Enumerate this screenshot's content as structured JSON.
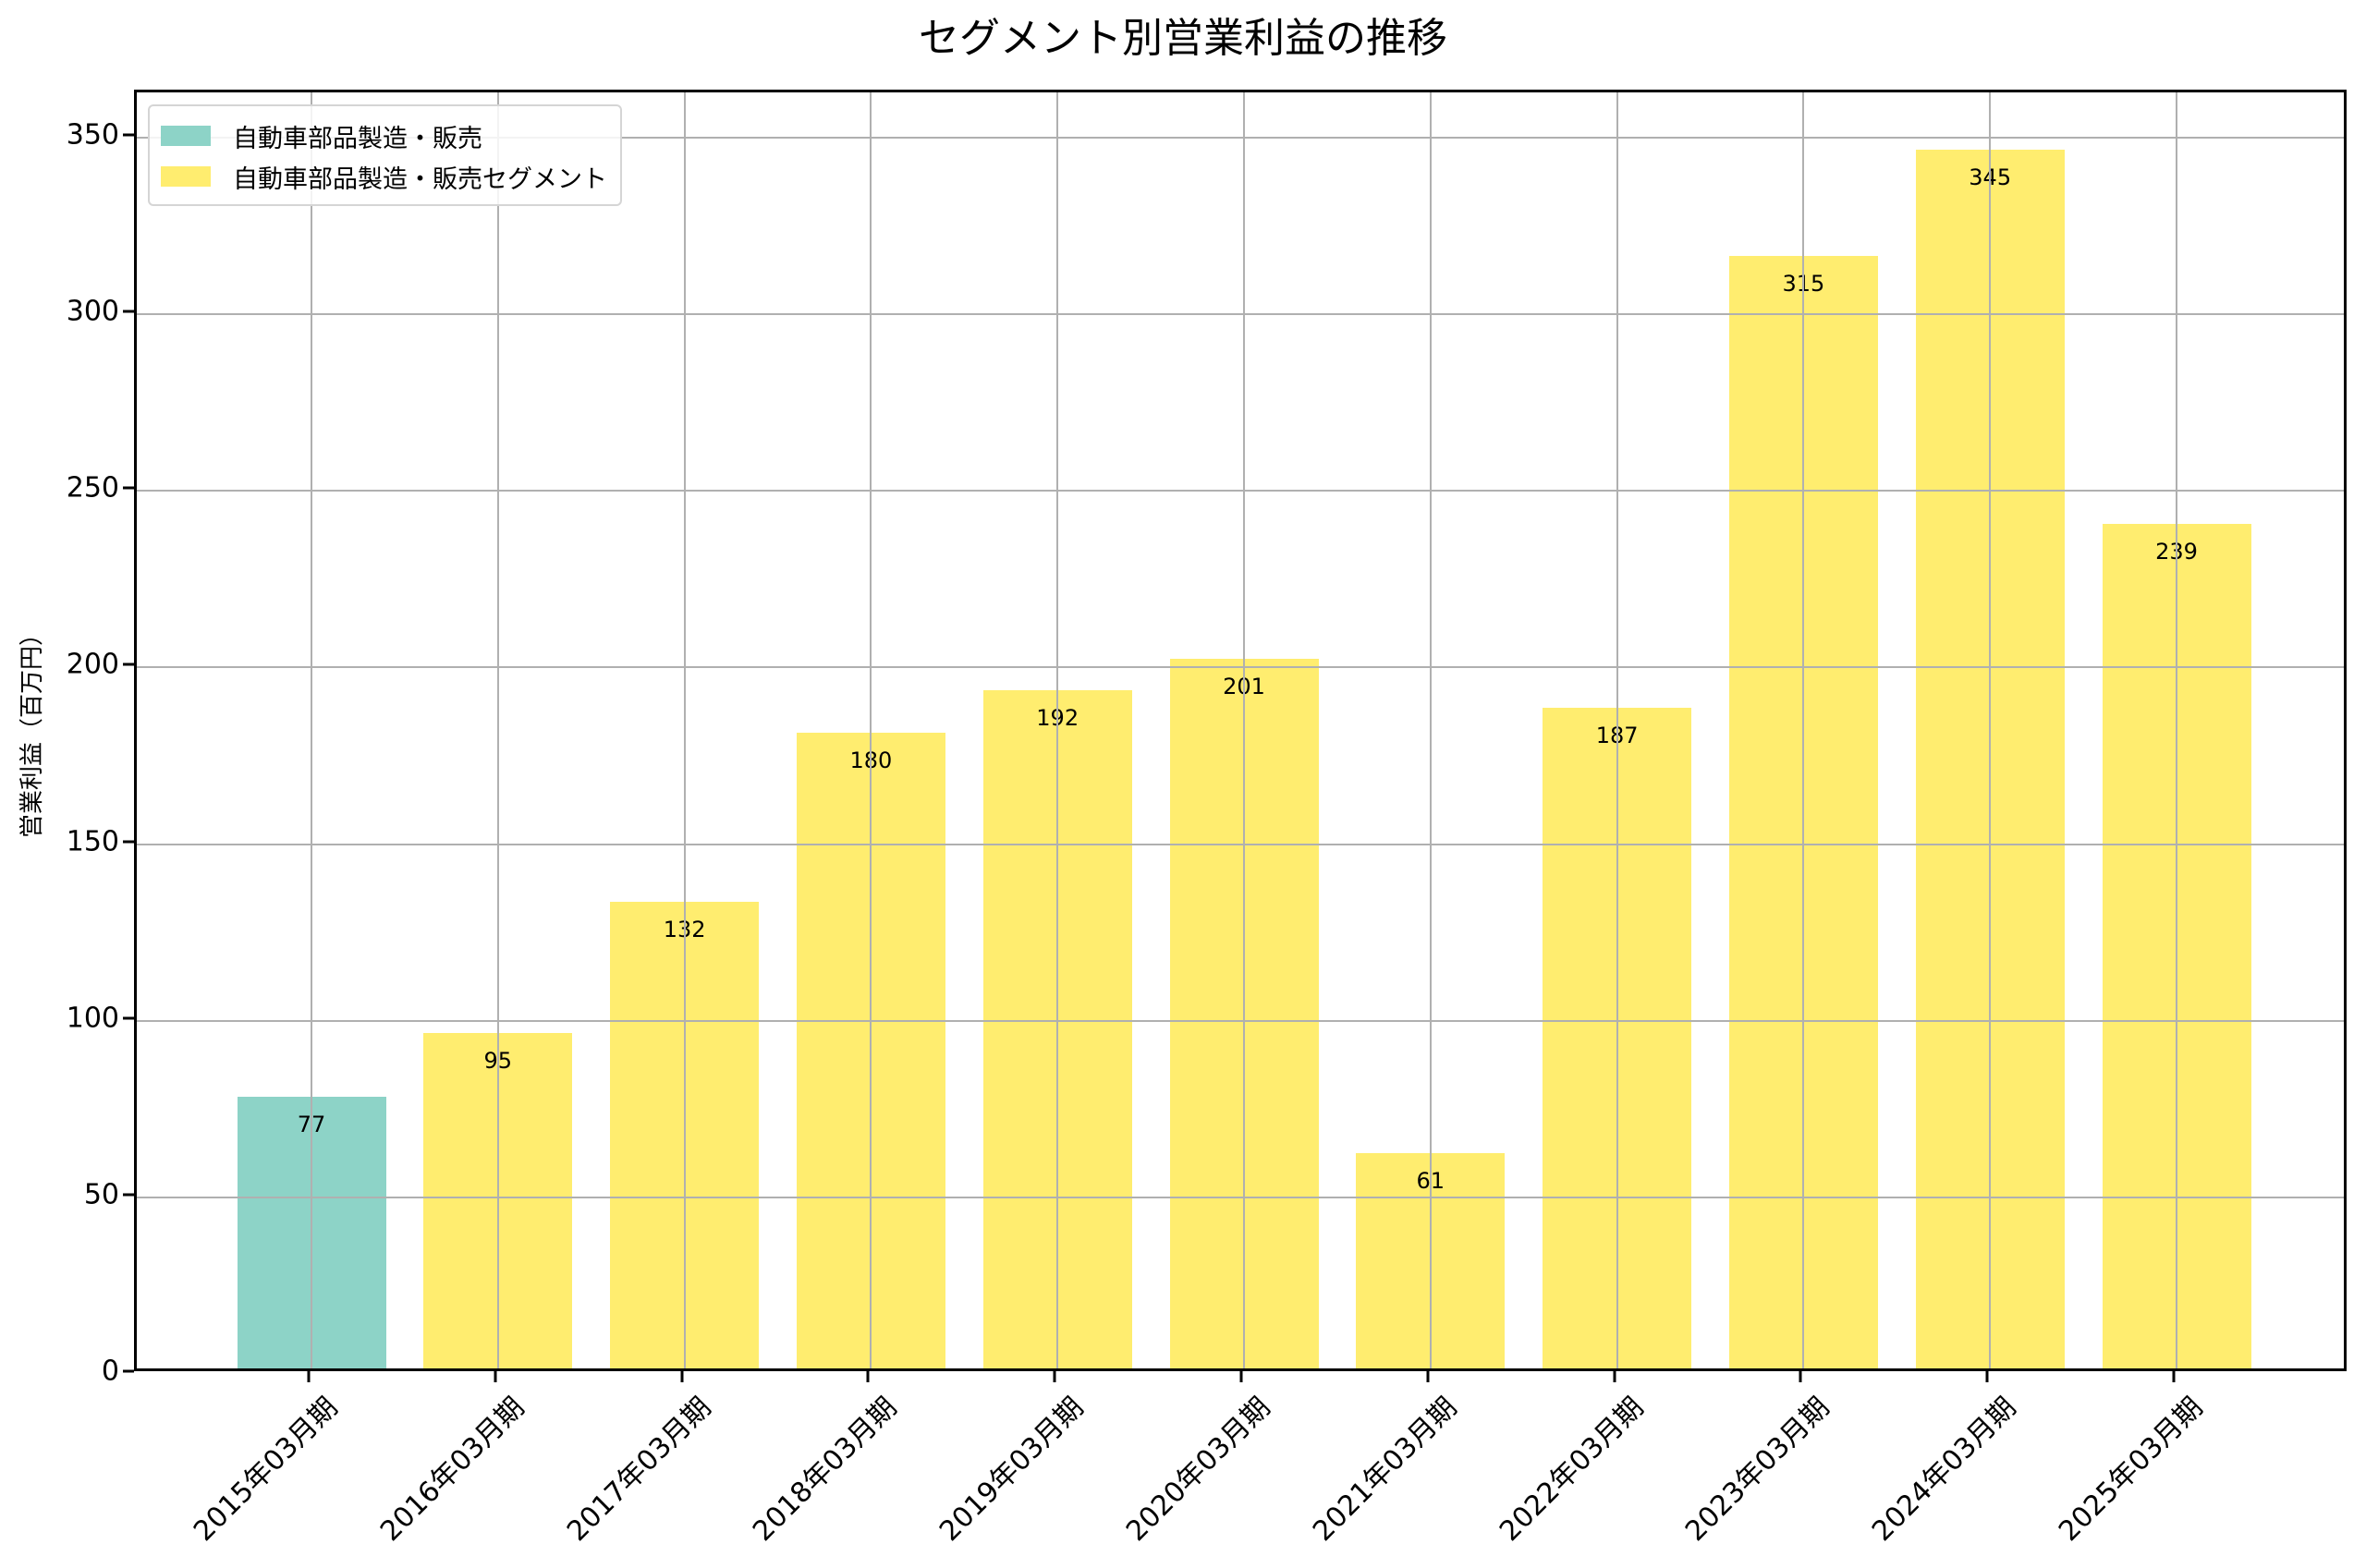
{
  "chart_data": {
    "type": "bar",
    "title": "セグメント別営業利益の推移",
    "xlabel": "",
    "ylabel": "営業利益（百万円）",
    "ylim": [
      0,
      362.8
    ],
    "yticks": [
      0,
      50,
      100,
      150,
      200,
      250,
      300,
      350
    ],
    "grid": true,
    "legend_position": "upper left",
    "categories": [
      "2015年03月期",
      "2016年03月期",
      "2017年03月期",
      "2018年03月期",
      "2019年03月期",
      "2020年03月期",
      "2021年03月期",
      "2022年03月期",
      "2023年03月期",
      "2024年03月期",
      "2025年03月期"
    ],
    "series": [
      {
        "name": "自動車部品製造・販売",
        "color": "#8dd3c7",
        "values": [
          77,
          null,
          null,
          null,
          null,
          null,
          null,
          null,
          null,
          null,
          null
        ]
      },
      {
        "name": "自動車部品製造・販売セグメント",
        "color": "#ffed6f",
        "values": [
          null,
          95,
          132,
          180,
          192,
          201,
          61,
          187,
          315,
          345,
          239
        ]
      }
    ],
    "data_labels": [
      "77",
      "95",
      "132",
      "180",
      "192",
      "201",
      "61",
      "187",
      "315",
      "345",
      "239"
    ]
  }
}
